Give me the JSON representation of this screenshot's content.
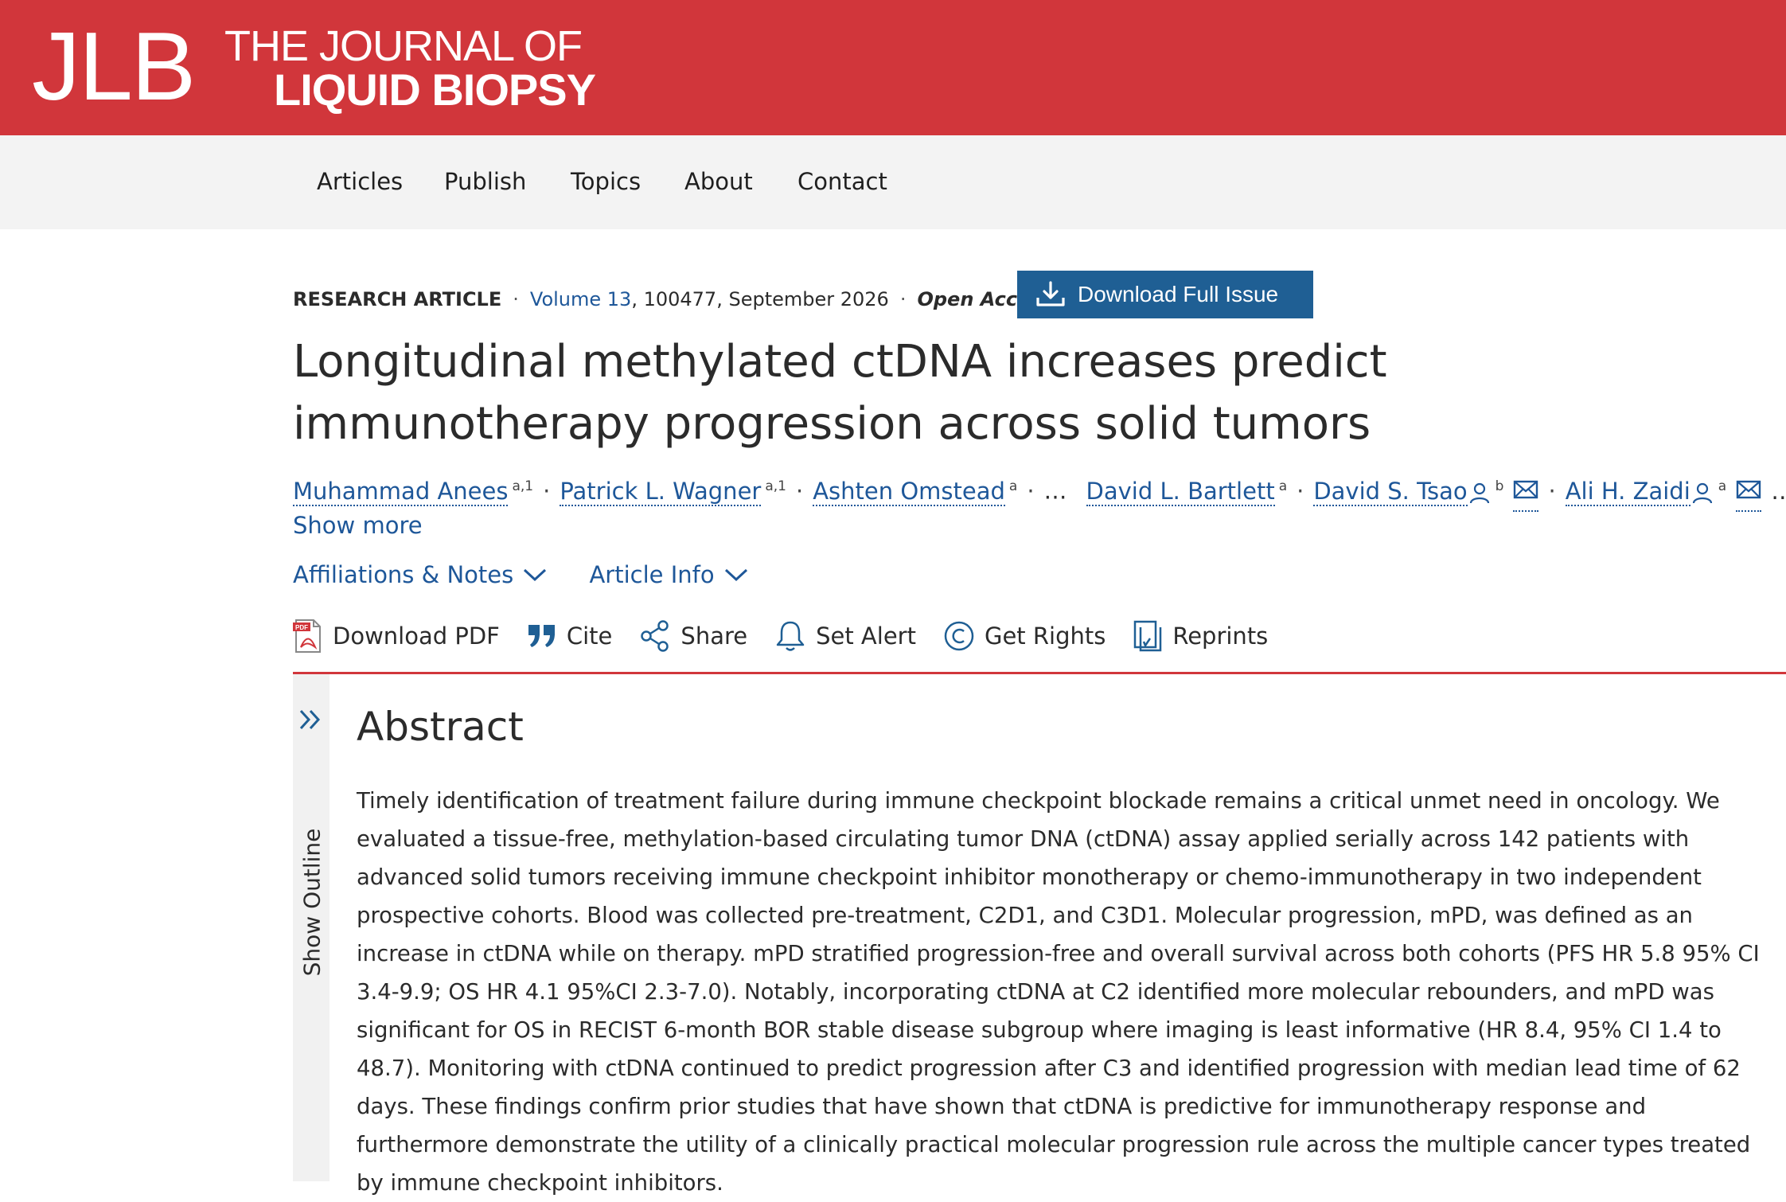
{
  "header": {
    "logo_mark": "JLB",
    "logo_line1": "THE JOURNAL OF",
    "logo_line2": "LIQUID BIOPSY",
    "brand_color": "#d1363b"
  },
  "nav": {
    "items": [
      "Articles",
      "Publish",
      "Topics",
      "About",
      "Contact"
    ]
  },
  "article": {
    "type": "RESEARCH ARTICLE",
    "volume_label": "Volume 13",
    "article_number_date": ", 100477, September 2026",
    "access": "Open Access",
    "download_issue_label": "Download Full Issue",
    "title": "Longitudinal methylated ctDNA increases predict immunotherapy progression across solid tumors",
    "authors": [
      {
        "name": "Muhammad Anees",
        "sup": "a,1"
      },
      {
        "name": "Patrick L. Wagner",
        "sup": "a,1"
      },
      {
        "name": "Ashten Omstead",
        "sup": "a"
      },
      {
        "name": "David L. Bartlett",
        "sup": "a"
      },
      {
        "name": "David S. Tsao",
        "sup": "b"
      },
      {
        "name": "Ali H. Zaidi",
        "sup": "a"
      }
    ],
    "ellipsis": "…",
    "show_more": "Show more",
    "affiliations_label": "Affiliations & Notes",
    "article_info_label": "Article Info"
  },
  "actions": {
    "download_pdf": "Download PDF",
    "cite": "Cite",
    "share": "Share",
    "set_alert": "Set Alert",
    "get_rights": "Get Rights",
    "reprints": "Reprints",
    "icons": [
      "pdf-icon",
      "quote-icon",
      "share-icon",
      "bell-icon",
      "copyright-icon",
      "reprints-icon"
    ]
  },
  "outline": {
    "label": "Show Outline"
  },
  "abstract": {
    "heading": "Abstract",
    "text": "Timely identification of treatment failure during immune checkpoint blockade remains a critical unmet need in oncology. We evaluated a tissue-free, methylation-based circulating tumor DNA (ctDNA) assay applied serially across 142 patients with advanced solid tumors receiving immune checkpoint inhibitor monotherapy or chemo-immunotherapy in two independent prospective cohorts. Blood was collected pre-treatment, C2D1, and C3D1. Molecular progression, mPD, was defined as an increase in ctDNA while on therapy. mPD stratified progression-free and overall survival across both cohorts (PFS HR 5.8 95% CI 3.4-9.9; OS HR 4.1 95%CI 2.3-7.0). Notably, incorporating ctDNA at C2 identified more molecular rebounders, and mPD was significant for OS in RECIST 6-month BOR stable disease subgroup where imaging is least informative (HR 8.4, 95% CI 1.4 to 48.7). Monitoring with ctDNA continued to predict progression after C3 and identified progression with median lead time of 62 days. These findings confirm prior studies that have shown that ctDNA is predictive for immunotherapy response and furthermore demonstrate the utility of a clinically practical molecular progression rule across the multiple cancer types treated by immune checkpoint inhibitors."
  }
}
